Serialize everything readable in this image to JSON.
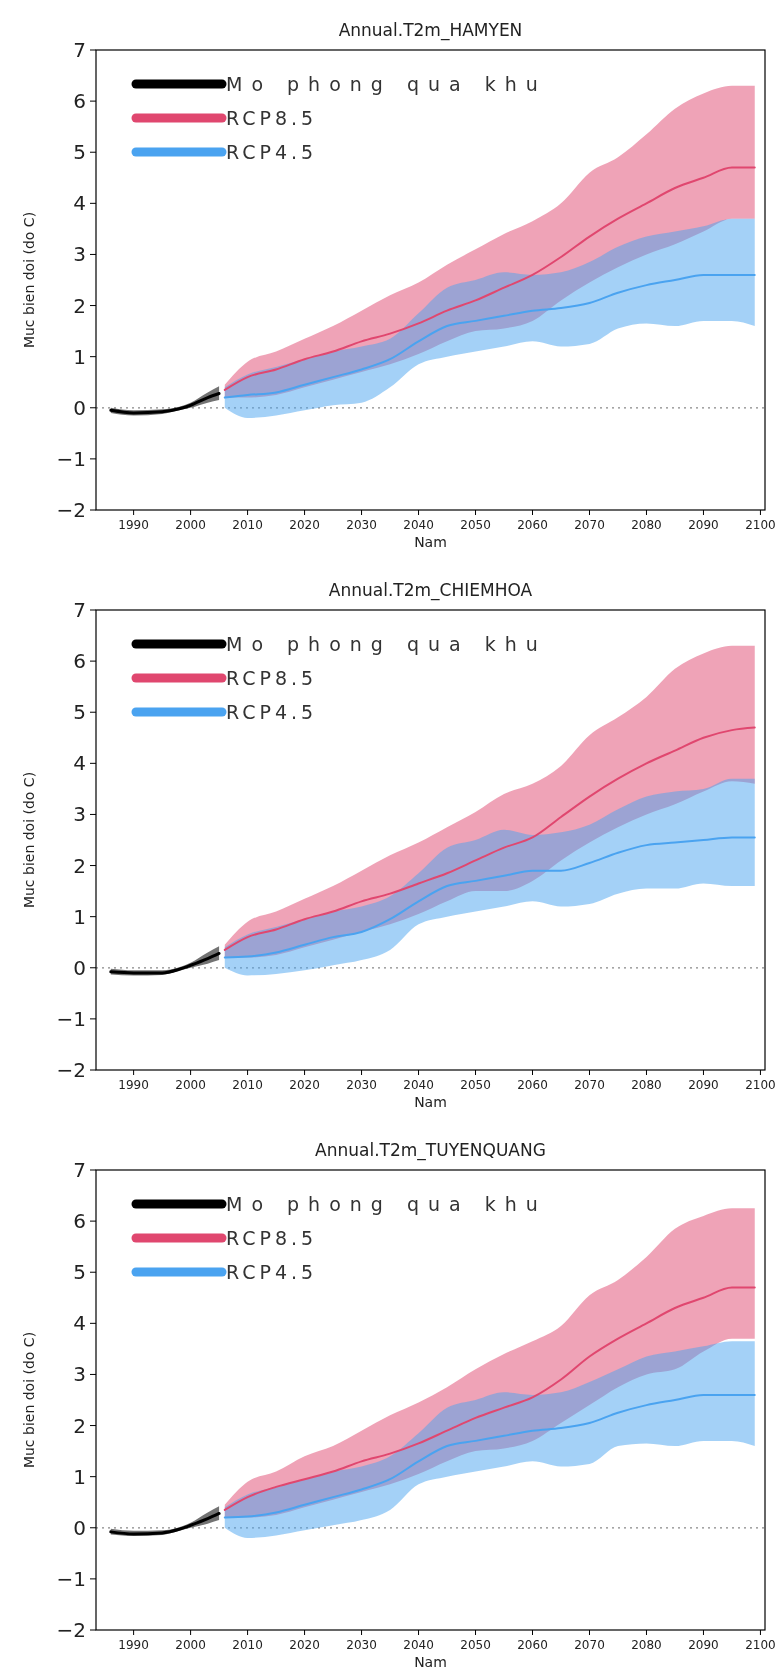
{
  "chart_data": [
    {
      "type": "line",
      "title": "Annual.T2m_HAMYEN",
      "xlabel": "Nam",
      "ylabel": "Muc bien doi (do C)",
      "xlim": [
        1983.4,
        2100.8
      ],
      "ylim": [
        -2,
        7
      ],
      "xticks": [
        1990,
        2000,
        2010,
        2020,
        2030,
        2040,
        2050,
        2060,
        2070,
        2080,
        2090,
        2100
      ],
      "yticks": [
        -2,
        -1,
        0,
        1,
        2,
        3,
        4,
        5,
        6,
        7
      ],
      "legend": "top left",
      "ref_lines": [
        {
          "axis": "y",
          "value": 0,
          "line_style": "dotted",
          "color": "#888888"
        }
      ],
      "series": [
        {
          "name": "Mo phong qua khu",
          "color": "#000000",
          "x": [
            1986,
            1990,
            1995,
            1998,
            2000,
            2003,
            2005
          ],
          "values": [
            -0.05,
            -0.1,
            -0.08,
            -0.02,
            0.05,
            0.2,
            0.28
          ],
          "lower": [
            -0.1,
            -0.15,
            -0.12,
            -0.05,
            0.0,
            0.1,
            0.15
          ],
          "upper": [
            0.0,
            -0.05,
            -0.03,
            0.02,
            0.1,
            0.3,
            0.42
          ]
        },
        {
          "name": "RCP8.5",
          "color": "#e0476f",
          "x": [
            2006,
            2010,
            2015,
            2020,
            2025,
            2030,
            2035,
            2040,
            2045,
            2050,
            2055,
            2060,
            2065,
            2070,
            2075,
            2080,
            2085,
            2090,
            2095,
            2099
          ],
          "values": [
            0.35,
            0.6,
            0.75,
            0.95,
            1.1,
            1.3,
            1.45,
            1.65,
            1.9,
            2.1,
            2.35,
            2.6,
            2.95,
            3.35,
            3.7,
            4.0,
            4.3,
            4.5,
            4.7,
            4.7
          ],
          "lower": [
            0.2,
            0.2,
            0.25,
            0.4,
            0.55,
            0.7,
            0.85,
            1.05,
            1.3,
            1.5,
            1.55,
            1.7,
            2.1,
            2.45,
            2.75,
            3.0,
            3.2,
            3.45,
            3.7,
            3.7
          ],
          "upper": [
            0.45,
            0.9,
            1.1,
            1.35,
            1.6,
            1.9,
            2.2,
            2.45,
            2.8,
            3.1,
            3.4,
            3.65,
            4.0,
            4.6,
            4.9,
            5.35,
            5.85,
            6.15,
            6.3,
            6.3
          ]
        },
        {
          "name": "RCP4.5",
          "color": "#4aa3f0",
          "x": [
            2006,
            2010,
            2015,
            2020,
            2025,
            2030,
            2035,
            2040,
            2045,
            2050,
            2055,
            2060,
            2065,
            2070,
            2075,
            2080,
            2085,
            2090,
            2095,
            2099
          ],
          "values": [
            0.2,
            0.25,
            0.3,
            0.45,
            0.6,
            0.75,
            0.95,
            1.3,
            1.6,
            1.7,
            1.8,
            1.9,
            1.95,
            2.05,
            2.25,
            2.4,
            2.5,
            2.6,
            2.6,
            2.6
          ],
          "lower": [
            0.0,
            -0.2,
            -0.15,
            -0.05,
            0.05,
            0.1,
            0.4,
            0.85,
            1.0,
            1.1,
            1.2,
            1.3,
            1.2,
            1.25,
            1.55,
            1.65,
            1.6,
            1.7,
            1.7,
            1.6
          ],
          "upper": [
            0.4,
            0.65,
            0.8,
            0.95,
            1.1,
            1.2,
            1.35,
            1.85,
            2.35,
            2.5,
            2.65,
            2.6,
            2.65,
            2.85,
            3.15,
            3.35,
            3.45,
            3.55,
            3.7,
            3.7
          ]
        }
      ]
    },
    {
      "type": "line",
      "title": "Annual.T2m_CHIEMHOA",
      "xlabel": "Nam",
      "ylabel": "Muc bien doi (do C)",
      "xlim": [
        1983.4,
        2100.8
      ],
      "ylim": [
        -2,
        7
      ],
      "xticks": [
        1990,
        2000,
        2010,
        2020,
        2030,
        2040,
        2050,
        2060,
        2070,
        2080,
        2090,
        2100
      ],
      "yticks": [
        -2,
        -1,
        0,
        1,
        2,
        3,
        4,
        5,
        6,
        7
      ],
      "legend": "top left",
      "ref_lines": [
        {
          "axis": "y",
          "value": 0,
          "line_style": "dotted",
          "color": "#888888"
        }
      ],
      "series": [
        {
          "name": "Mo phong qua khu",
          "color": "#000000",
          "x": [
            1986,
            1990,
            1995,
            1998,
            2000,
            2003,
            2005
          ],
          "values": [
            -0.08,
            -0.1,
            -0.1,
            -0.03,
            0.05,
            0.18,
            0.28
          ],
          "lower": [
            -0.13,
            -0.15,
            -0.14,
            -0.06,
            0.0,
            0.08,
            0.15
          ],
          "upper": [
            -0.02,
            -0.05,
            -0.05,
            0.01,
            0.1,
            0.3,
            0.42
          ]
        },
        {
          "name": "RCP8.5",
          "color": "#e0476f",
          "x": [
            2006,
            2010,
            2015,
            2020,
            2025,
            2030,
            2035,
            2040,
            2045,
            2050,
            2055,
            2060,
            2065,
            2070,
            2075,
            2080,
            2085,
            2090,
            2095,
            2099
          ],
          "values": [
            0.35,
            0.6,
            0.75,
            0.95,
            1.1,
            1.3,
            1.45,
            1.65,
            1.85,
            2.1,
            2.35,
            2.55,
            2.95,
            3.35,
            3.7,
            4.0,
            4.25,
            4.5,
            4.65,
            4.7
          ],
          "lower": [
            0.2,
            0.2,
            0.25,
            0.4,
            0.55,
            0.7,
            0.85,
            1.05,
            1.3,
            1.5,
            1.5,
            1.7,
            2.1,
            2.45,
            2.75,
            3.0,
            3.2,
            3.45,
            3.65,
            3.6
          ],
          "upper": [
            0.45,
            0.9,
            1.1,
            1.35,
            1.6,
            1.9,
            2.2,
            2.45,
            2.75,
            3.05,
            3.4,
            3.6,
            3.95,
            4.55,
            4.9,
            5.3,
            5.85,
            6.15,
            6.3,
            6.3
          ]
        },
        {
          "name": "RCP4.5",
          "color": "#4aa3f0",
          "x": [
            2006,
            2010,
            2015,
            2020,
            2025,
            2030,
            2035,
            2040,
            2045,
            2050,
            2055,
            2060,
            2065,
            2070,
            2075,
            2080,
            2085,
            2090,
            2095,
            2099
          ],
          "values": [
            0.2,
            0.22,
            0.3,
            0.45,
            0.6,
            0.7,
            0.95,
            1.3,
            1.6,
            1.7,
            1.8,
            1.9,
            1.9,
            2.05,
            2.25,
            2.4,
            2.45,
            2.5,
            2.55,
            2.55
          ],
          "lower": [
            0.0,
            -0.15,
            -0.12,
            -0.05,
            0.05,
            0.15,
            0.35,
            0.85,
            1.0,
            1.1,
            1.2,
            1.3,
            1.2,
            1.25,
            1.45,
            1.55,
            1.55,
            1.65,
            1.6,
            1.6
          ],
          "upper": [
            0.4,
            0.65,
            0.8,
            0.95,
            1.1,
            1.2,
            1.4,
            1.85,
            2.35,
            2.5,
            2.7,
            2.6,
            2.65,
            2.8,
            3.1,
            3.35,
            3.45,
            3.5,
            3.7,
            3.7
          ]
        }
      ]
    },
    {
      "type": "line",
      "title": "Annual.T2m_TUYENQUANG",
      "xlabel": "Nam",
      "ylabel": "Muc bien doi (do C)",
      "xlim": [
        1983.4,
        2100.8
      ],
      "ylim": [
        -2,
        7
      ],
      "xticks": [
        1990,
        2000,
        2010,
        2020,
        2030,
        2040,
        2050,
        2060,
        2070,
        2080,
        2090,
        2100
      ],
      "yticks": [
        -2,
        -1,
        0,
        1,
        2,
        3,
        4,
        5,
        6,
        7
      ],
      "legend": "top left",
      "ref_lines": [
        {
          "axis": "y",
          "value": 0,
          "line_style": "dotted",
          "color": "#888888"
        }
      ],
      "series": [
        {
          "name": "Mo phong qua khu",
          "color": "#000000",
          "x": [
            1986,
            1990,
            1995,
            1998,
            2000,
            2003,
            2005
          ],
          "values": [
            -0.08,
            -0.12,
            -0.1,
            -0.03,
            0.05,
            0.18,
            0.28
          ],
          "lower": [
            -0.13,
            -0.16,
            -0.14,
            -0.06,
            0.0,
            0.08,
            0.15
          ],
          "upper": [
            -0.02,
            -0.06,
            -0.05,
            0.01,
            0.1,
            0.3,
            0.42
          ]
        },
        {
          "name": "RCP8.5",
          "color": "#e0476f",
          "x": [
            2006,
            2010,
            2015,
            2020,
            2025,
            2030,
            2035,
            2040,
            2045,
            2050,
            2055,
            2060,
            2065,
            2070,
            2075,
            2080,
            2085,
            2090,
            2095,
            2099
          ],
          "values": [
            0.35,
            0.6,
            0.8,
            0.95,
            1.1,
            1.3,
            1.45,
            1.65,
            1.9,
            2.15,
            2.35,
            2.55,
            2.9,
            3.35,
            3.7,
            4.0,
            4.3,
            4.5,
            4.7,
            4.7
          ],
          "lower": [
            0.2,
            0.2,
            0.25,
            0.4,
            0.55,
            0.7,
            0.85,
            1.05,
            1.3,
            1.5,
            1.55,
            1.7,
            2.05,
            2.4,
            2.75,
            3.0,
            3.1,
            3.45,
            3.7,
            3.7
          ],
          "upper": [
            0.45,
            0.9,
            1.1,
            1.4,
            1.6,
            1.9,
            2.2,
            2.45,
            2.75,
            3.1,
            3.4,
            3.65,
            3.95,
            4.55,
            4.85,
            5.3,
            5.85,
            6.1,
            6.25,
            6.25
          ]
        },
        {
          "name": "RCP4.5",
          "color": "#4aa3f0",
          "x": [
            2006,
            2010,
            2015,
            2020,
            2025,
            2030,
            2035,
            2040,
            2045,
            2050,
            2055,
            2060,
            2065,
            2070,
            2075,
            2080,
            2085,
            2090,
            2095,
            2099
          ],
          "values": [
            0.2,
            0.22,
            0.3,
            0.45,
            0.6,
            0.75,
            0.95,
            1.3,
            1.6,
            1.7,
            1.8,
            1.9,
            1.95,
            2.05,
            2.25,
            2.4,
            2.5,
            2.6,
            2.6,
            2.6
          ],
          "lower": [
            0.0,
            -0.2,
            -0.15,
            -0.05,
            0.05,
            0.15,
            0.35,
            0.85,
            1.0,
            1.1,
            1.2,
            1.3,
            1.2,
            1.25,
            1.6,
            1.65,
            1.6,
            1.7,
            1.7,
            1.6
          ],
          "upper": [
            0.4,
            0.65,
            0.8,
            0.95,
            1.1,
            1.2,
            1.4,
            1.85,
            2.35,
            2.5,
            2.65,
            2.6,
            2.65,
            2.85,
            3.1,
            3.35,
            3.45,
            3.55,
            3.65,
            3.65
          ]
        }
      ]
    }
  ]
}
